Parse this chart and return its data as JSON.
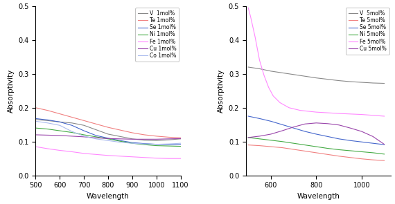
{
  "left_plot": {
    "xlabel": "Wavelength",
    "ylabel": "Absorptivity",
    "xlim": [
      500,
      1100
    ],
    "ylim": [
      0.0,
      0.5
    ],
    "yticks": [
      0.0,
      0.1,
      0.2,
      0.3,
      0.4,
      0.5
    ],
    "xticks": [
      500,
      600,
      700,
      800,
      900,
      1000,
      1100
    ],
    "series": [
      {
        "label": "V  1mol%",
        "color": "#888888",
        "x": [
          500,
          550,
          600,
          650,
          700,
          750,
          800,
          850,
          900,
          950,
          1000,
          1050,
          1100
        ],
        "y": [
          0.165,
          0.162,
          0.158,
          0.155,
          0.148,
          0.135,
          0.122,
          0.115,
          0.108,
          0.104,
          0.103,
          0.105,
          0.108
        ]
      },
      {
        "label": "Te 1mol%",
        "color": "#f08080",
        "x": [
          500,
          550,
          600,
          650,
          700,
          750,
          800,
          850,
          900,
          950,
          1000,
          1050,
          1100
        ],
        "y": [
          0.2,
          0.192,
          0.182,
          0.172,
          0.162,
          0.152,
          0.142,
          0.134,
          0.126,
          0.12,
          0.116,
          0.113,
          0.111
        ]
      },
      {
        "label": "Se 1mol%",
        "color": "#4466cc",
        "x": [
          500,
          550,
          600,
          650,
          700,
          750,
          800,
          850,
          900,
          950,
          1000,
          1050,
          1100
        ],
        "y": [
          0.168,
          0.164,
          0.158,
          0.148,
          0.132,
          0.118,
          0.11,
          0.103,
          0.097,
          0.094,
          0.092,
          0.091,
          0.091
        ]
      },
      {
        "label": "Ni 1mol%",
        "color": "#44aa44",
        "x": [
          500,
          550,
          600,
          650,
          700,
          750,
          800,
          850,
          900,
          950,
          1000,
          1050,
          1100
        ],
        "y": [
          0.14,
          0.137,
          0.132,
          0.127,
          0.12,
          0.114,
          0.108,
          0.101,
          0.095,
          0.091,
          0.088,
          0.087,
          0.086
        ]
      },
      {
        "label": "Fe 1mol%",
        "color": "#ff88ff",
        "x": [
          500,
          550,
          600,
          650,
          700,
          750,
          800,
          850,
          900,
          950,
          1000,
          1050,
          1100
        ],
        "y": [
          0.085,
          0.079,
          0.074,
          0.07,
          0.065,
          0.062,
          0.059,
          0.057,
          0.055,
          0.053,
          0.051,
          0.05,
          0.05
        ]
      },
      {
        "label": "Cu 1mol%",
        "color": "#9944aa",
        "x": [
          500,
          550,
          600,
          650,
          700,
          750,
          800,
          850,
          900,
          950,
          1000,
          1050,
          1100
        ],
        "y": [
          0.12,
          0.119,
          0.118,
          0.116,
          0.114,
          0.111,
          0.109,
          0.108,
          0.107,
          0.107,
          0.107,
          0.108,
          0.109
        ]
      },
      {
        "label": "Co 1mol%",
        "color": "#aabbee",
        "x": [
          500,
          550,
          600,
          650,
          700,
          750,
          800,
          850,
          900,
          950,
          1000,
          1050,
          1100
        ],
        "y": [
          0.16,
          0.155,
          0.148,
          0.13,
          0.116,
          0.108,
          0.103,
          0.098,
          0.095,
          0.093,
          0.092,
          0.093,
          0.095
        ]
      }
    ]
  },
  "right_plot": {
    "xlabel": "Wavelength",
    "ylabel": "Absorptivity",
    "xlim": [
      490,
      1130
    ],
    "ylim": [
      0.0,
      0.5
    ],
    "yticks": [
      0.0,
      0.1,
      0.2,
      0.3,
      0.4,
      0.5
    ],
    "xticks": [
      600,
      800,
      1000
    ],
    "series": [
      {
        "label": "V  5mol%",
        "color": "#888888",
        "x": [
          500,
          550,
          600,
          650,
          700,
          750,
          800,
          850,
          900,
          950,
          1000,
          1050,
          1100
        ],
        "y": [
          0.32,
          0.315,
          0.308,
          0.303,
          0.298,
          0.293,
          0.288,
          0.284,
          0.28,
          0.277,
          0.275,
          0.273,
          0.272
        ]
      },
      {
        "label": "Te 5mol%",
        "color": "#f08080",
        "x": [
          500,
          550,
          600,
          650,
          700,
          750,
          800,
          850,
          900,
          950,
          1000,
          1050,
          1100
        ],
        "y": [
          0.09,
          0.088,
          0.085,
          0.082,
          0.077,
          0.072,
          0.067,
          0.062,
          0.057,
          0.053,
          0.049,
          0.046,
          0.044
        ]
      },
      {
        "label": "Se 5mol%",
        "color": "#4466cc",
        "x": [
          500,
          550,
          600,
          650,
          700,
          750,
          800,
          850,
          900,
          950,
          1000,
          1050,
          1100
        ],
        "y": [
          0.175,
          0.168,
          0.16,
          0.15,
          0.14,
          0.13,
          0.122,
          0.115,
          0.108,
          0.103,
          0.099,
          0.095,
          0.091
        ]
      },
      {
        "label": "Ni 5mol%",
        "color": "#44aa44",
        "x": [
          500,
          550,
          600,
          650,
          700,
          750,
          800,
          850,
          900,
          950,
          1000,
          1050,
          1100
        ],
        "y": [
          0.112,
          0.108,
          0.104,
          0.1,
          0.095,
          0.09,
          0.085,
          0.08,
          0.076,
          0.073,
          0.07,
          0.067,
          0.063
        ]
      },
      {
        "label": "Fe 5mol%",
        "color": "#ff88ff",
        "x": [
          500,
          510,
          520,
          530,
          540,
          550,
          570,
          590,
          610,
          640,
          680,
          730,
          800,
          900,
          1000,
          1100
        ],
        "y": [
          0.495,
          0.47,
          0.44,
          0.41,
          0.375,
          0.34,
          0.295,
          0.26,
          0.235,
          0.215,
          0.2,
          0.192,
          0.187,
          0.183,
          0.18,
          0.175
        ]
      },
      {
        "label": "Cu 5mol%",
        "color": "#9944aa",
        "x": [
          500,
          550,
          600,
          650,
          700,
          750,
          800,
          850,
          900,
          950,
          1000,
          1050,
          1100
        ],
        "y": [
          0.112,
          0.116,
          0.122,
          0.132,
          0.143,
          0.152,
          0.155,
          0.153,
          0.149,
          0.14,
          0.13,
          0.115,
          0.092
        ]
      }
    ]
  }
}
